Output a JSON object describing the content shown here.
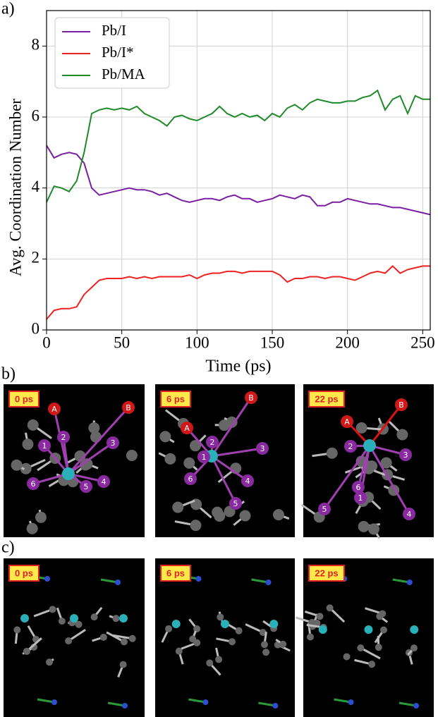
{
  "chart_data": {
    "type": "line",
    "panel_label": "a)",
    "xlabel": "Time (ps)",
    "ylabel": "Avg. Coordination Number",
    "x": [
      0,
      5,
      10,
      15,
      20,
      25,
      30,
      35,
      40,
      45,
      50,
      55,
      60,
      65,
      70,
      75,
      80,
      85,
      90,
      95,
      100,
      105,
      110,
      115,
      120,
      125,
      130,
      135,
      140,
      145,
      150,
      155,
      160,
      165,
      170,
      175,
      180,
      185,
      190,
      195,
      200,
      205,
      210,
      215,
      220,
      225,
      230,
      235,
      240,
      245,
      250,
      255
    ],
    "series": [
      {
        "name": "Pb/I",
        "color": "#7b1fa2",
        "values": [
          5.2,
          4.85,
          4.95,
          5.0,
          4.95,
          4.7,
          4.0,
          3.8,
          3.85,
          3.9,
          3.95,
          4.0,
          3.95,
          3.95,
          3.9,
          3.8,
          3.85,
          3.75,
          3.65,
          3.6,
          3.65,
          3.7,
          3.7,
          3.65,
          3.75,
          3.8,
          3.7,
          3.7,
          3.6,
          3.65,
          3.7,
          3.8,
          3.75,
          3.7,
          3.8,
          3.75,
          3.5,
          3.5,
          3.6,
          3.6,
          3.7,
          3.65,
          3.6,
          3.55,
          3.55,
          3.5,
          3.45,
          3.45,
          3.4,
          3.35,
          3.3,
          3.25
        ]
      },
      {
        "name": "Pb/I*",
        "color": "#ee2222",
        "values": [
          0.3,
          0.55,
          0.6,
          0.6,
          0.65,
          1.0,
          1.2,
          1.4,
          1.45,
          1.45,
          1.45,
          1.5,
          1.45,
          1.5,
          1.45,
          1.5,
          1.5,
          1.5,
          1.5,
          1.55,
          1.45,
          1.55,
          1.6,
          1.6,
          1.65,
          1.65,
          1.6,
          1.65,
          1.65,
          1.65,
          1.65,
          1.55,
          1.35,
          1.45,
          1.45,
          1.5,
          1.5,
          1.45,
          1.5,
          1.5,
          1.45,
          1.4,
          1.5,
          1.6,
          1.65,
          1.6,
          1.8,
          1.6,
          1.7,
          1.75,
          1.8,
          1.8
        ]
      },
      {
        "name": "Pb/MA",
        "color": "#1f8a2a",
        "values": [
          3.6,
          4.05,
          4.0,
          3.9,
          4.2,
          5.0,
          6.1,
          6.2,
          6.25,
          6.2,
          6.25,
          6.2,
          6.3,
          6.1,
          6.0,
          5.9,
          5.75,
          6.0,
          6.05,
          5.95,
          5.9,
          6.0,
          6.1,
          6.3,
          6.1,
          6.0,
          6.1,
          6.0,
          6.05,
          5.9,
          6.1,
          6.0,
          6.25,
          6.35,
          6.2,
          6.4,
          6.5,
          6.45,
          6.4,
          6.4,
          6.45,
          6.45,
          6.55,
          6.6,
          6.75,
          6.2,
          6.5,
          6.6,
          6.1,
          6.6,
          6.5,
          6.5
        ]
      }
    ],
    "xlim": [
      0,
      255
    ],
    "ylim": [
      0,
      9
    ],
    "xticks": [
      0,
      50,
      100,
      150,
      200,
      250
    ],
    "yticks": [
      0,
      2,
      4,
      6,
      8
    ],
    "grid": true,
    "legend": "upper-left"
  },
  "panels": [
    {
      "label": "b)",
      "images": [
        {
          "time": "0 ps",
          "atoms": [
            "A",
            "B",
            "1",
            "2",
            "3",
            "4",
            "5",
            "6"
          ]
        },
        {
          "time": "6 ps",
          "atoms": [
            "A",
            "B",
            "1",
            "2",
            "3",
            "4",
            "5",
            "6"
          ]
        },
        {
          "time": "22 ps",
          "atoms": [
            "A",
            "B",
            "2",
            "3",
            "6",
            "1",
            "5",
            "4"
          ]
        }
      ]
    },
    {
      "label": "c)",
      "images": [
        {
          "time": "0 ps"
        },
        {
          "time": "6 ps"
        },
        {
          "time": "22 ps"
        }
      ]
    }
  ]
}
